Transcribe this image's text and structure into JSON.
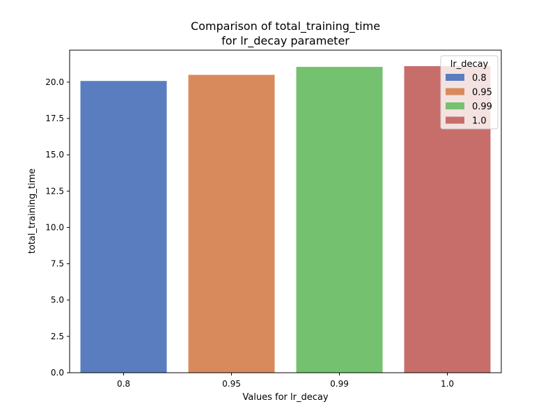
{
  "chart_data": {
    "type": "bar",
    "title_lines": [
      "Comparison of total_training_time",
      "for lr_decay parameter"
    ],
    "xlabel": "Values for lr_decay",
    "ylabel": "total_training_time",
    "categories": [
      "0.8",
      "0.95",
      "0.99",
      "1.0"
    ],
    "values": [
      20.08,
      20.5,
      21.05,
      21.1
    ],
    "colors": [
      "#5a7dc0",
      "#d98a5c",
      "#74c26f",
      "#c76e6b"
    ],
    "ylim": [
      0,
      22.2
    ],
    "yticks": [
      0.0,
      2.5,
      5.0,
      7.5,
      10.0,
      12.5,
      15.0,
      17.5,
      20.0
    ],
    "ytick_labels": [
      "0.0",
      "2.5",
      "5.0",
      "7.5",
      "10.0",
      "12.5",
      "15.0",
      "17.5",
      "20.0"
    ],
    "legend": {
      "title": "lr_decay",
      "placement": "top-right",
      "entries": [
        "0.8",
        "0.95",
        "0.99",
        "1.0"
      ]
    },
    "grid": false
  }
}
